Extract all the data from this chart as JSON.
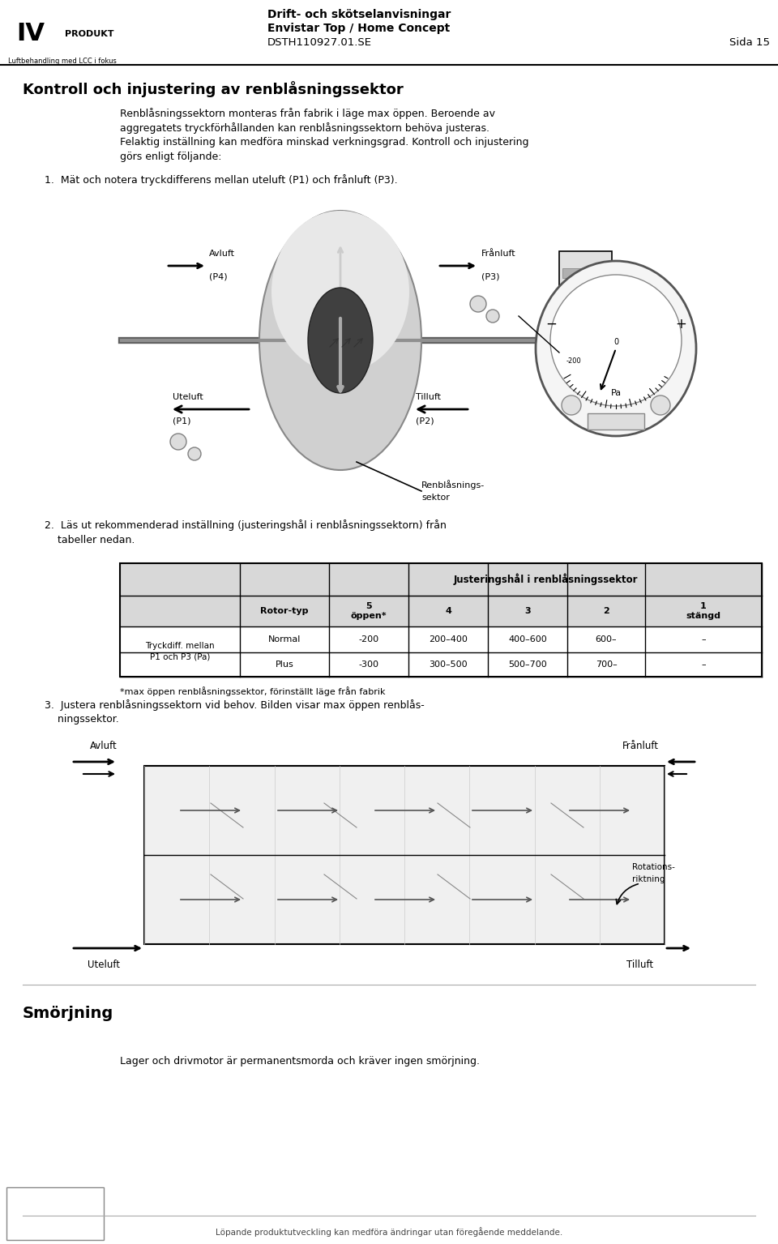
{
  "page_width": 9.6,
  "page_height": 15.35,
  "bg_color": "#ffffff",
  "header": {
    "title_line1": "Drift- och skötselanvisningar",
    "title_line2": "Envistar Top / Home Concept",
    "title_line3": "DSTH110927.01.SE",
    "page_label": "Sida 15",
    "sub_logo": "Luftbehandling med LCC i fokus"
  },
  "section_title": "Kontroll och injustering av renblåsningssektor",
  "body_text1_lines": [
    "Renblåsningssektorn monteras från fabrik i läge max öppen. Beroende av",
    "aggregatets tryckförhållanden kan renblåsningssektorn behöva justeras.",
    "Felaktig inställning kan medföra minskad verkningsgrad. Kontroll och injustering",
    "görs enligt följande:"
  ],
  "step1": "1.  Mät och notera tryckdifferens mellan uteluft (P1) och frånluft (P3).",
  "step2_line1": "2.  Läs ut rekommenderad inställning (justeringshål i renblåsningssektorn) från",
  "step2_line2": "    tabeller nedan.",
  "step3_line1": "3.  Justera renblåsningssektorn vid behov. Bilden visar max öppen renblås-",
  "step3_line2": "    ningssektor.",
  "table_header_juster": "Justeringshål i renblåsningssektor",
  "table_col_rotor": "Rotor-typ",
  "table_col_5open": "5\nöppen*",
  "table_col_4": "4",
  "table_col_3": "3",
  "table_col_2": "2",
  "table_col_1stangd": "1\nstängd",
  "table_row_label": "Tryckdiff. mellan\nP1 och P3 (Pa)",
  "table_row1_normal_label": "Normal",
  "table_row1_plus_label": "Plus",
  "table_r1_normal": [
    "-200",
    "200–400",
    "400–600",
    "600–",
    "–"
  ],
  "table_r1_plus": [
    "-300",
    "300–500",
    "500–700",
    "700–",
    "–"
  ],
  "table_footnote": "*max öppen renblåsningssektor, förinställt läge från fabrik",
  "smörjning_title": "Smörjning",
  "smörjning_text": "Lager och drivmotor är permanentsmorda och kräver ingen smörjning.",
  "footer_text": "Löpande produktutveckling kan medföra ändringar utan föregående meddelande."
}
